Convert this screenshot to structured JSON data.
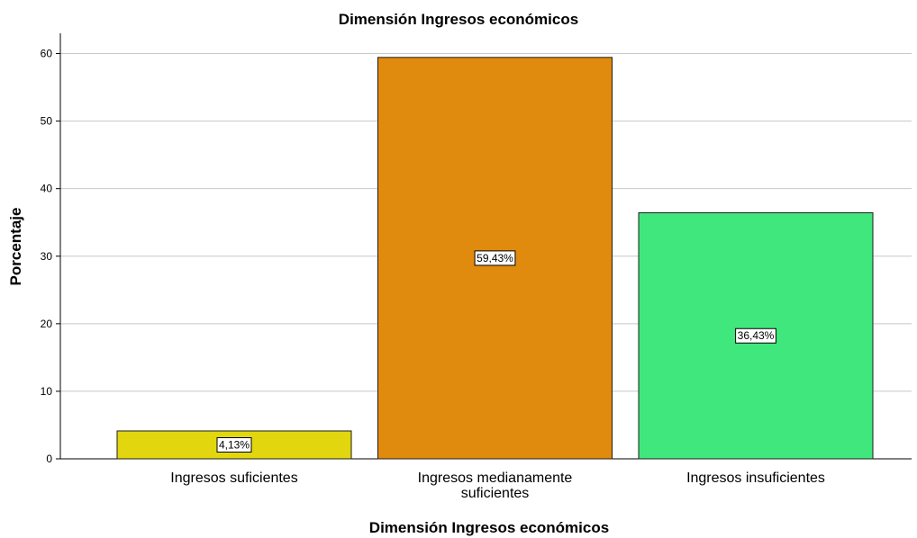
{
  "chart_data": {
    "type": "bar",
    "title": "Dimensión Ingresos económicos",
    "xlabel": "Dimensión Ingresos económicos",
    "ylabel": "Porcentaje",
    "categories": [
      "Ingresos suficientes",
      "Ingresos medianamente suficientes",
      "Ingresos insuficientes"
    ],
    "category_lines": [
      [
        "Ingresos suficientes"
      ],
      [
        "Ingresos medianamente",
        "suficientes"
      ],
      [
        "Ingresos insuficientes"
      ]
    ],
    "values": [
      4.13,
      59.43,
      36.43
    ],
    "value_labels": [
      "4,13%",
      "59,43%",
      "36,43%"
    ],
    "colors": [
      "#e2d60e",
      "#e08a0e",
      "#3fe77c"
    ],
    "ylim": [
      0,
      63
    ],
    "yticks": [
      0,
      10,
      20,
      30,
      40,
      50,
      60
    ],
    "grid": true
  }
}
